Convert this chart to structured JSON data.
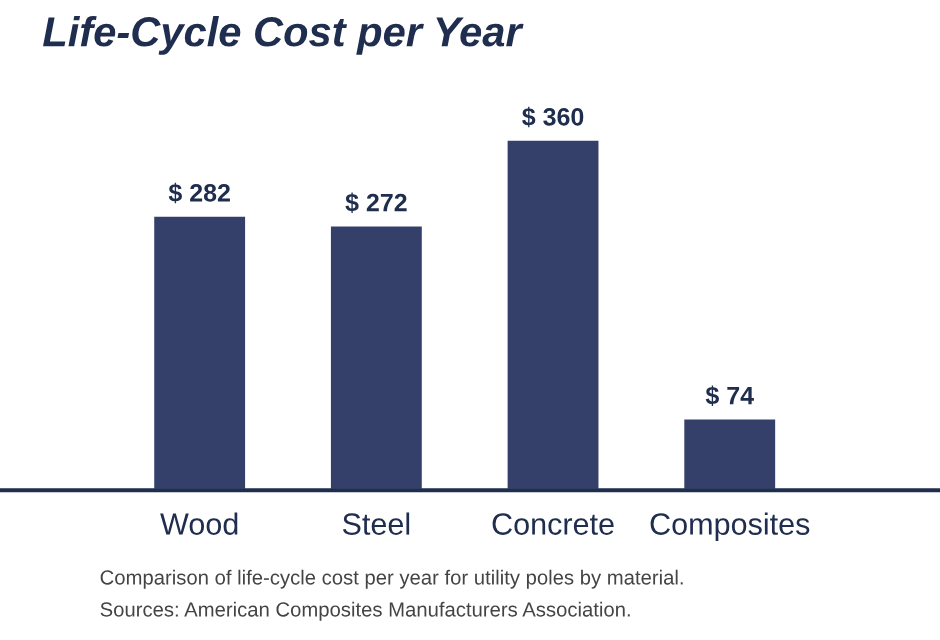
{
  "chart_data": {
    "type": "bar",
    "title": "Life-Cycle Cost per Year",
    "categories": [
      "Wood",
      "Steel",
      "Concrete",
      "Composites"
    ],
    "values": [
      282,
      272,
      360,
      74
    ],
    "value_labels": [
      "$ 282",
      "$ 272",
      "$ 360",
      "$ 74"
    ],
    "color": "#35406a",
    "annotations": [
      "Comparison of life-cycle cost per year for utility poles by material.",
      "Sources: American Composites Manufacturers Association."
    ]
  }
}
